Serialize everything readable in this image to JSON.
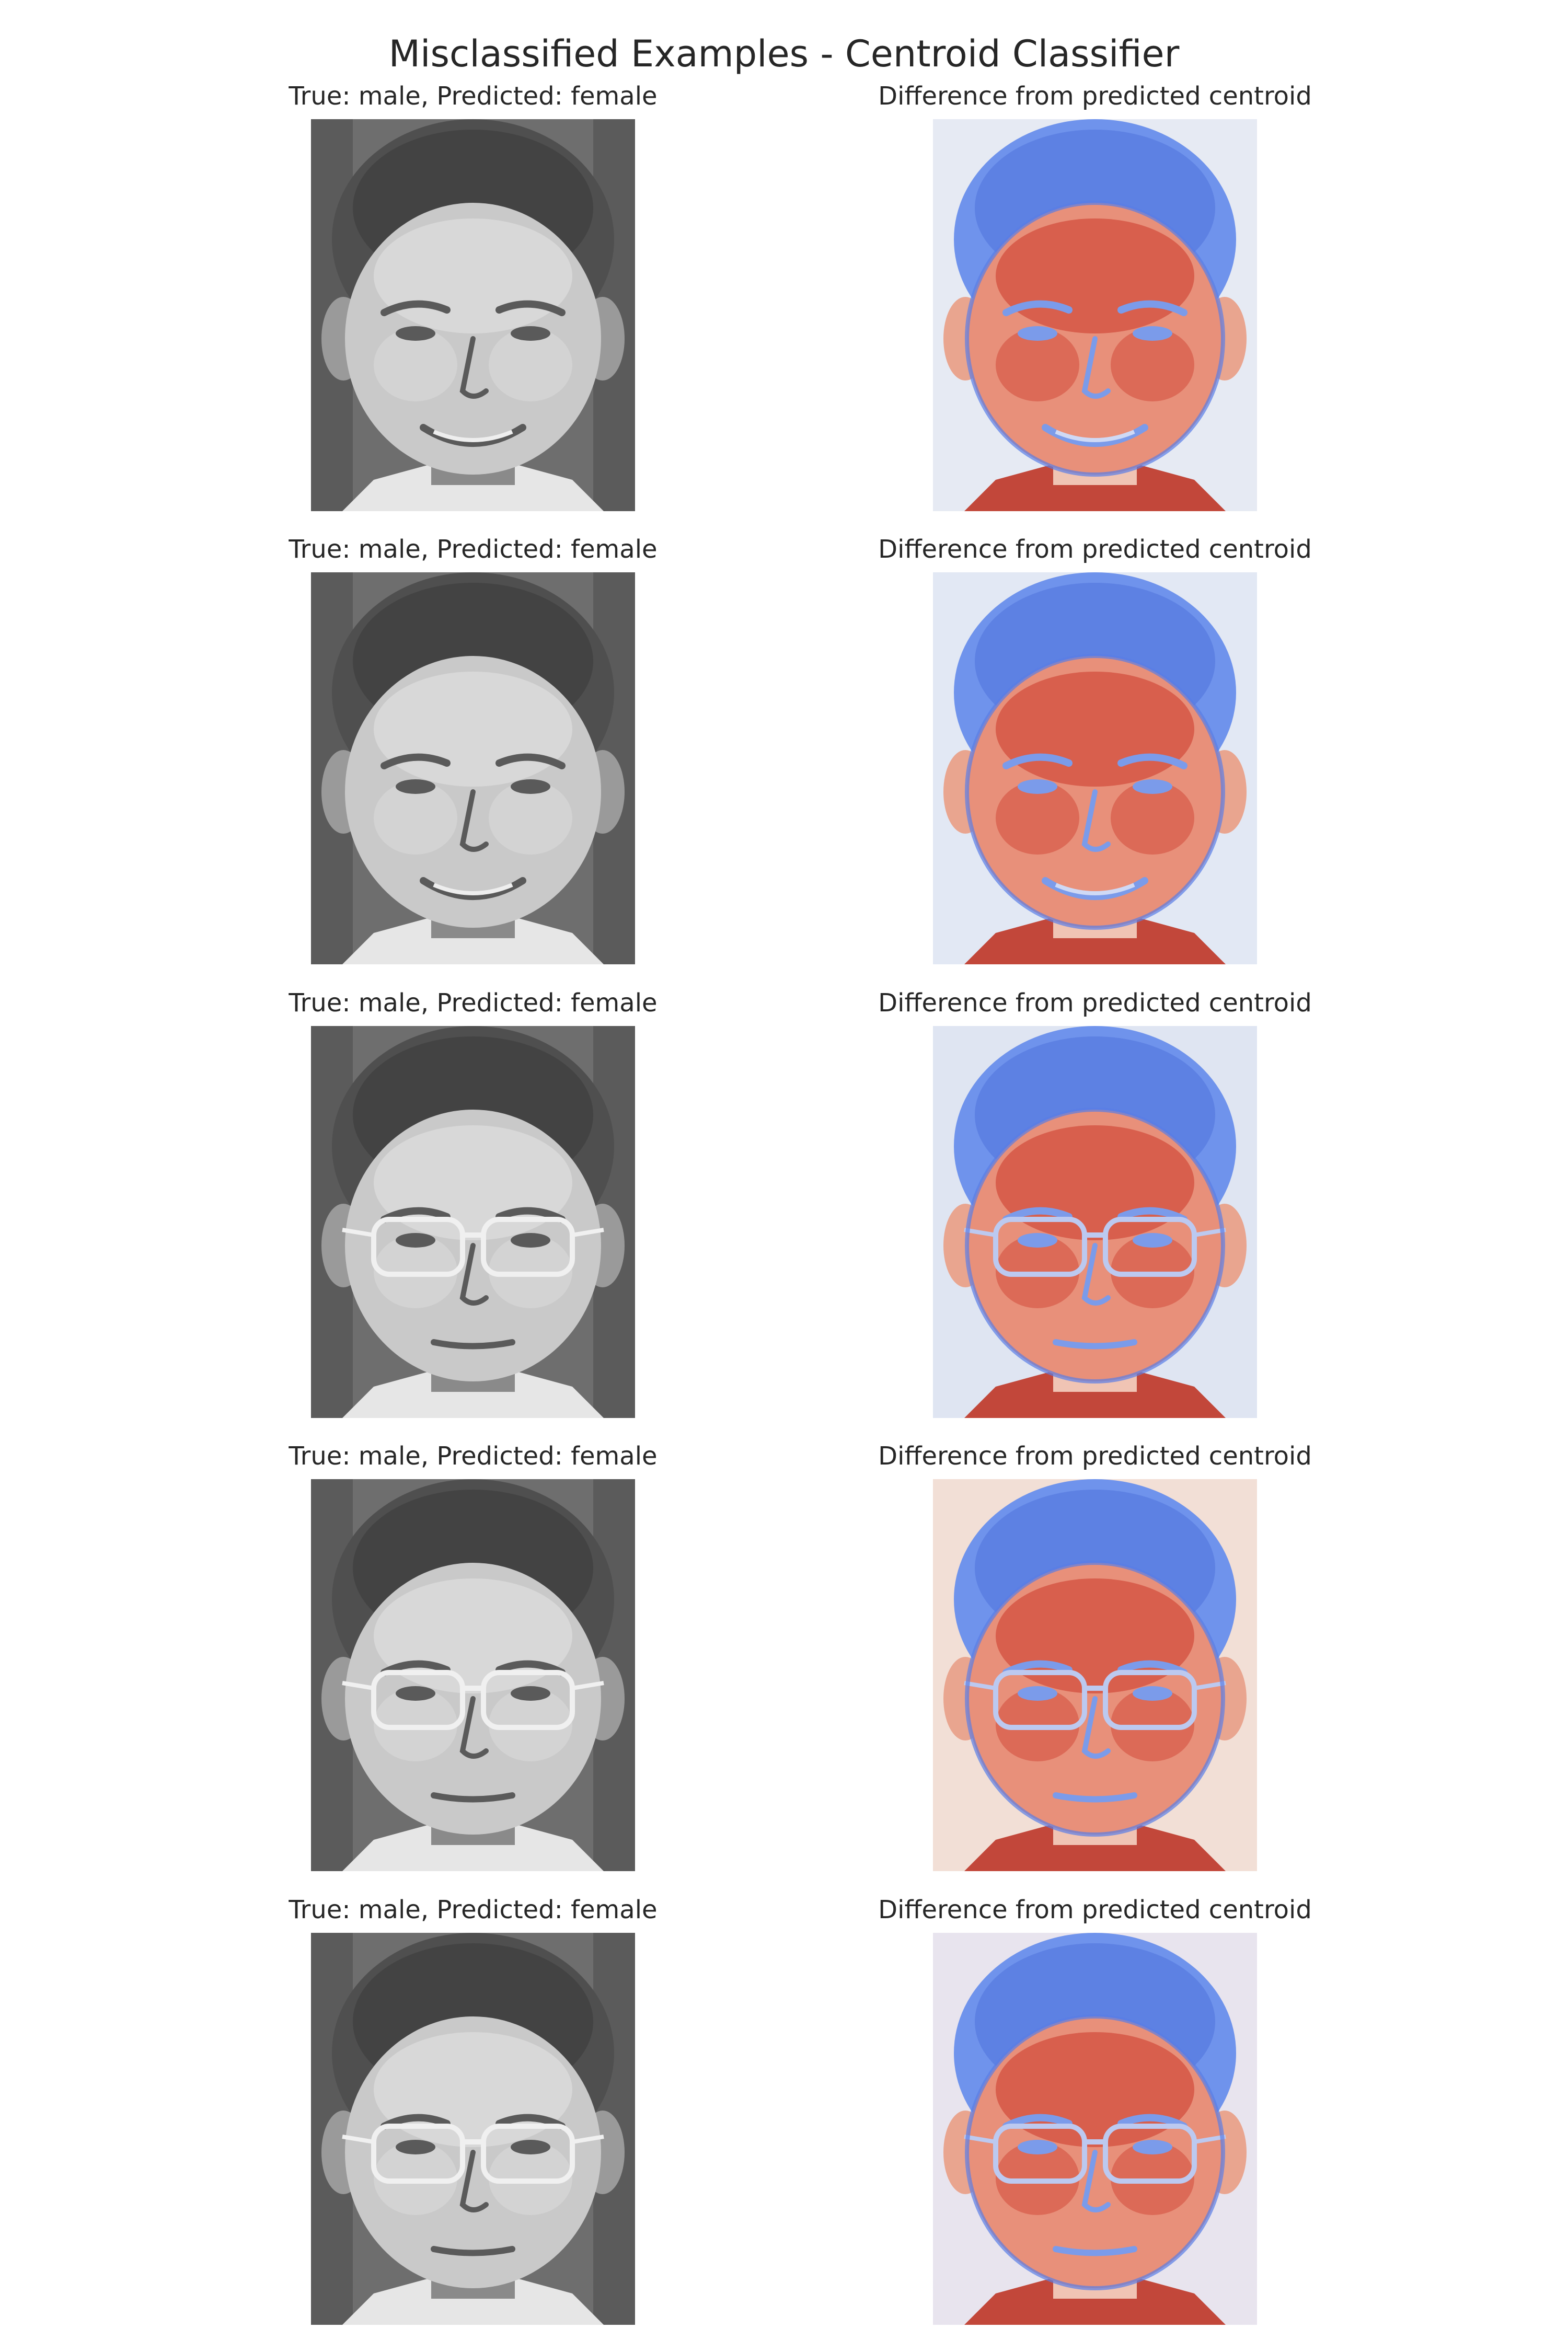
{
  "figure": {
    "title": "Misclassified Examples - Centroid Classifier"
  },
  "examples": [
    {
      "image_title": "True: male, Predicted: female",
      "diff_title": "Difference from predicted centroid",
      "glasses": false,
      "smile": true,
      "diff_bg": "#e6eaf3"
    },
    {
      "image_title": "True: male, Predicted: female",
      "diff_title": "Difference from predicted centroid",
      "glasses": false,
      "smile": true,
      "diff_bg": "#e2e8f4"
    },
    {
      "image_title": "True: male, Predicted: female",
      "diff_title": "Difference from predicted centroid",
      "glasses": true,
      "smile": false,
      "diff_bg": "#dfe5f2"
    },
    {
      "image_title": "True: male, Predicted: female",
      "diff_title": "Difference from predicted centroid",
      "glasses": true,
      "smile": false,
      "diff_bg": "#f2dfd6"
    },
    {
      "image_title": "True: male, Predicted: female",
      "diff_title": "Difference from predicted centroid",
      "glasses": true,
      "smile": false,
      "diff_bg": "#e8e4ee"
    }
  ],
  "colormaps": {
    "image": "gray",
    "difference": "coolwarm"
  },
  "colors": {
    "warm": "#d24a3a",
    "cool": "#5a7ee6",
    "gray_dark": "#4a4a4a",
    "gray_light": "#d8d8d8"
  }
}
